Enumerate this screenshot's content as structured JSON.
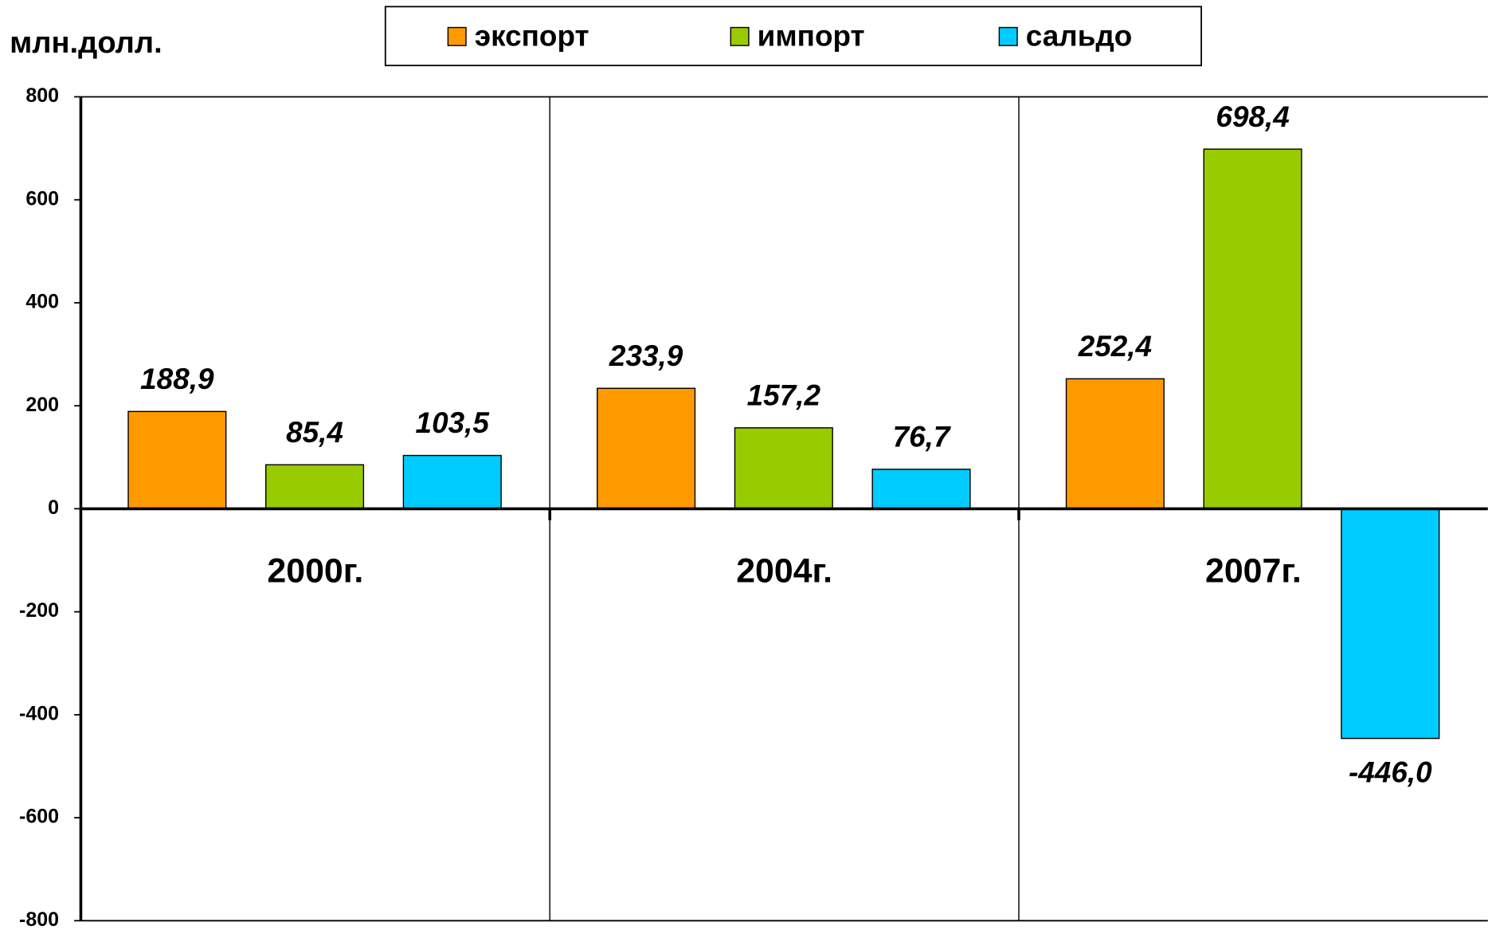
{
  "chart_data": {
    "type": "bar",
    "y_label": "млн.долл.",
    "categories": [
      "2000г.",
      "2004г.",
      "2007г."
    ],
    "series": [
      {
        "name": "экспорт",
        "color": "#ff9900",
        "values": [
          188.9,
          233.9,
          252.4
        ],
        "value_labels": [
          "188,9",
          "233,9",
          "252,4"
        ]
      },
      {
        "name": "импорт",
        "color": "#99cc00",
        "values": [
          85.4,
          157.2,
          698.4
        ],
        "value_labels": [
          "85,4",
          "157,2",
          "698,4"
        ]
      },
      {
        "name": "сальдо",
        "color": "#00ccff",
        "values": [
          103.5,
          76.7,
          -446.0
        ],
        "value_labels": [
          "103,5",
          "76,7",
          "-446,0"
        ]
      }
    ],
    "ylim": [
      -800,
      800
    ],
    "yticks": [
      -800,
      -600,
      -400,
      -200,
      0,
      200,
      400,
      600,
      800
    ],
    "grid": false,
    "legend": "top"
  }
}
